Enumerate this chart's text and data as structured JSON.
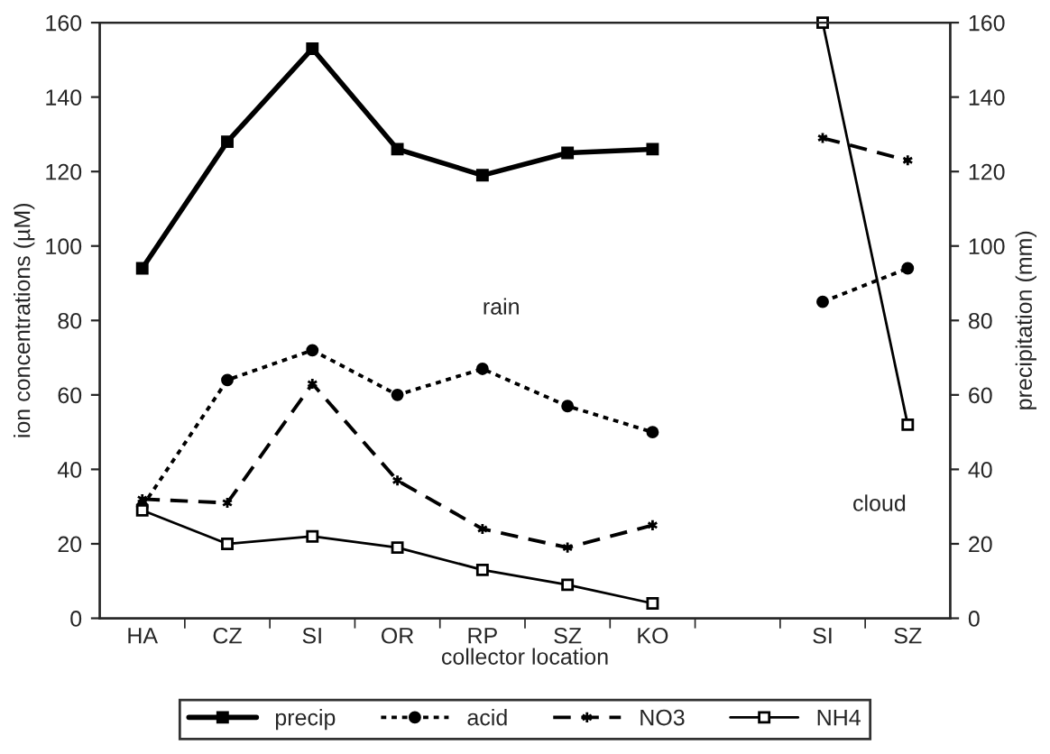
{
  "chart_data": {
    "type": "line",
    "xlabel": "collector location",
    "ylabel": "ion concentrations (µM)",
    "y2label": "precipitation (mm)",
    "categories": [
      "HA",
      "CZ",
      "SI",
      "OR",
      "RP",
      "SZ",
      "KO",
      null,
      "SI",
      "SZ"
    ],
    "series": [
      {
        "name": "precip",
        "color": "#000000",
        "axis": "y2",
        "marker": "square",
        "line_style": "solid",
        "values": [
          94,
          128,
          153,
          126,
          119,
          125,
          126,
          null,
          null,
          null
        ]
      },
      {
        "name": "acid",
        "color": "#000000",
        "marker": "circle",
        "line_style": "dotted",
        "values": [
          30,
          64,
          72,
          60,
          67,
          57,
          50,
          null,
          85,
          94
        ]
      },
      {
        "name": "NO3",
        "color": "#000000",
        "marker": "cross",
        "line_style": "dashed",
        "values": [
          32,
          31,
          63,
          37,
          24,
          19,
          25,
          null,
          129,
          123
        ]
      },
      {
        "name": "NH4",
        "color": "#000000",
        "marker": "square",
        "line_style": "solid",
        "values": [
          29,
          20,
          22,
          19,
          13,
          9,
          4,
          null,
          160,
          52
        ]
      }
    ],
    "ylim": [
      0,
      160
    ],
    "yticks": [
      0,
      20,
      40,
      60,
      80,
      100,
      120,
      140,
      160
    ],
    "y2lim": [
      0,
      160
    ],
    "y2ticks": [
      0,
      20,
      40,
      60,
      80,
      100,
      120,
      140,
      160
    ],
    "annotations": [
      "rain",
      "cloud"
    ],
    "grid": false,
    "legend": "bottom"
  }
}
